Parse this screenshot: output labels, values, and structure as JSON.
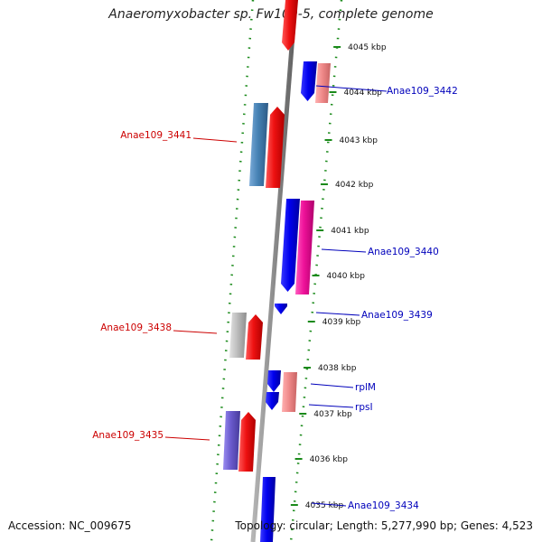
{
  "title": "Anaeromyxobacter sp. Fw109-5, complete genome",
  "accession": "Accession: NC_009675",
  "topology": "Topology: circular; Length: 5,277,990 bp; Genes: 4,523",
  "colors": {
    "backbone": "#8c8c8c",
    "tick_ring": "#1a8a1a",
    "forward_gene": "#0000ee",
    "reverse_gene": "#ee0000",
    "label_forward": "#0000bb",
    "label_reverse": "#cc0000"
  },
  "kbp_ticks": [
    {
      "label": "4045 kbp"
    },
    {
      "label": "4044 kbp"
    },
    {
      "label": "4043 kbp"
    },
    {
      "label": "4042 kbp"
    },
    {
      "label": "4041 kbp"
    },
    {
      "label": "4040 kbp"
    },
    {
      "label": "4039 kbp"
    },
    {
      "label": "4038 kbp"
    },
    {
      "label": "4037 kbp"
    },
    {
      "label": "4036 kbp"
    },
    {
      "label": "4035 kbp"
    }
  ],
  "gene_labels": [
    {
      "text": "Anae109_3442",
      "color_key": "label_forward"
    },
    {
      "text": "Anae109_3441",
      "color_key": "label_reverse"
    },
    {
      "text": "Anae109_3440",
      "color_key": "label_forward"
    },
    {
      "text": "Anae109_3439",
      "color_key": "label_forward"
    },
    {
      "text": "Anae109_3438",
      "color_key": "label_reverse"
    },
    {
      "text": "rplM",
      "color_key": "label_forward"
    },
    {
      "text": "rpsI",
      "color_key": "label_forward"
    },
    {
      "text": "Anae109_3435",
      "color_key": "label_reverse"
    },
    {
      "text": "Anae109_3434",
      "color_key": "label_forward"
    }
  ],
  "genes": [
    {
      "name": "top-red-gene",
      "color": "#ee1111",
      "strand": "reverse"
    },
    {
      "name": "gene-3442-blue",
      "color": "#0000ee",
      "strand": "forward"
    },
    {
      "name": "gene-3442-pink",
      "color": "#f08a8a",
      "strand": "forward"
    },
    {
      "name": "gene-3441-steelblue",
      "color": "#4682b4",
      "strand": "reverse"
    },
    {
      "name": "gene-3441-red",
      "color": "#ee1111",
      "strand": "reverse"
    },
    {
      "name": "gene-3440-blue",
      "color": "#0000ee",
      "strand": "forward"
    },
    {
      "name": "gene-3440-magenta",
      "color": "#ee1199",
      "strand": "forward"
    },
    {
      "name": "gene-3439-blue",
      "color": "#0000ee",
      "strand": "forward"
    },
    {
      "name": "gene-3438-grey",
      "color": "#bdbdbd",
      "strand": "reverse"
    },
    {
      "name": "gene-3438-red",
      "color": "#ee1111",
      "strand": "reverse"
    },
    {
      "name": "gene-rplM-blue",
      "color": "#0000ee",
      "strand": "forward"
    },
    {
      "name": "gene-rpsI-blue",
      "color": "#0000ee",
      "strand": "forward"
    },
    {
      "name": "gene-rpl-pink",
      "color": "#f08a8a",
      "strand": "forward"
    },
    {
      "name": "gene-3435-purple",
      "color": "#6a5acd",
      "strand": "reverse"
    },
    {
      "name": "gene-3435-red",
      "color": "#ee1111",
      "strand": "reverse"
    },
    {
      "name": "gene-3434-blue",
      "color": "#0000ee",
      "strand": "forward"
    }
  ]
}
